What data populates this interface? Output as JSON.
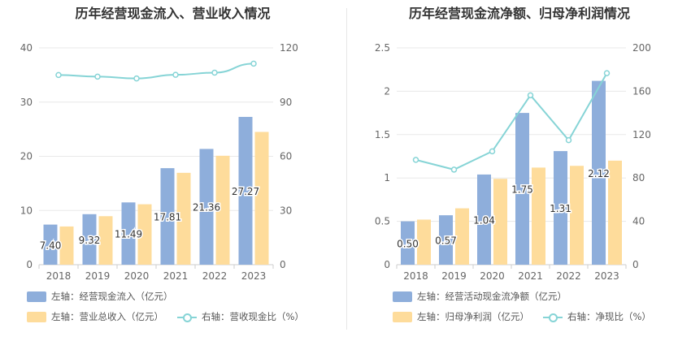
{
  "colors": {
    "bar1": "#8eaedb",
    "bar2": "#fedc9b",
    "line": "#86d4d6",
    "grid": "#e8e8e8",
    "axis_text": "#666666"
  },
  "chart_data": [
    {
      "type": "bar",
      "title": "历年经营现金流入、营业收入情况",
      "categories": [
        "2018",
        "2019",
        "2020",
        "2021",
        "2022",
        "2023"
      ],
      "ylim_left": [
        0,
        40
      ],
      "yticks_left": [
        "0",
        "10",
        "20",
        "30",
        "40"
      ],
      "ylim_right": [
        0,
        120
      ],
      "yticks_right": [
        "0",
        "30",
        "60",
        "90",
        "120"
      ],
      "series": [
        {
          "name": "左轴：经营现金流入（亿元）",
          "axis": "left",
          "kind": "bar",
          "values": [
            7.4,
            9.32,
            11.49,
            17.81,
            21.36,
            27.27
          ],
          "labels": [
            "7.40",
            "9.32",
            "11.49",
            "17.81",
            "21.36",
            "27.27"
          ]
        },
        {
          "name": "左轴：营业总收入（亿元）",
          "axis": "left",
          "kind": "bar",
          "values": [
            7.05,
            8.95,
            11.15,
            16.95,
            20.1,
            24.5
          ]
        },
        {
          "name": "右轴：营收现金比（%）",
          "axis": "right",
          "kind": "line",
          "values": [
            105.0,
            104.1,
            103.1,
            105.1,
            106.3,
            111.3
          ]
        }
      ]
    },
    {
      "type": "bar",
      "title": "历年经营现金流净额、归母净利润情况",
      "categories": [
        "2018",
        "2019",
        "2020",
        "2021",
        "2022",
        "2023"
      ],
      "ylim_left": [
        0,
        2.5
      ],
      "yticks_left": [
        "0",
        "0.5",
        "1",
        "1.5",
        "2",
        "2.5"
      ],
      "ylim_right": [
        0,
        200
      ],
      "yticks_right": [
        "0",
        "40",
        "80",
        "120",
        "160",
        "200"
      ],
      "series": [
        {
          "name": "左轴：经营活动现金流净额（亿元）",
          "axis": "left",
          "kind": "bar",
          "values": [
            0.5,
            0.57,
            1.04,
            1.75,
            1.31,
            2.12
          ],
          "labels": [
            "0.50",
            "0.57",
            "1.04",
            "1.75",
            "1.31",
            "2.12"
          ]
        },
        {
          "name": "左轴：归母净利润（亿元）",
          "axis": "left",
          "kind": "bar",
          "values": [
            0.52,
            0.65,
            0.99,
            1.12,
            1.14,
            1.2
          ]
        },
        {
          "name": "右轴：净现比（%）",
          "axis": "right",
          "kind": "line",
          "values": [
            96.7,
            87.7,
            104.6,
            156.3,
            114.9,
            176.7
          ]
        }
      ]
    }
  ]
}
